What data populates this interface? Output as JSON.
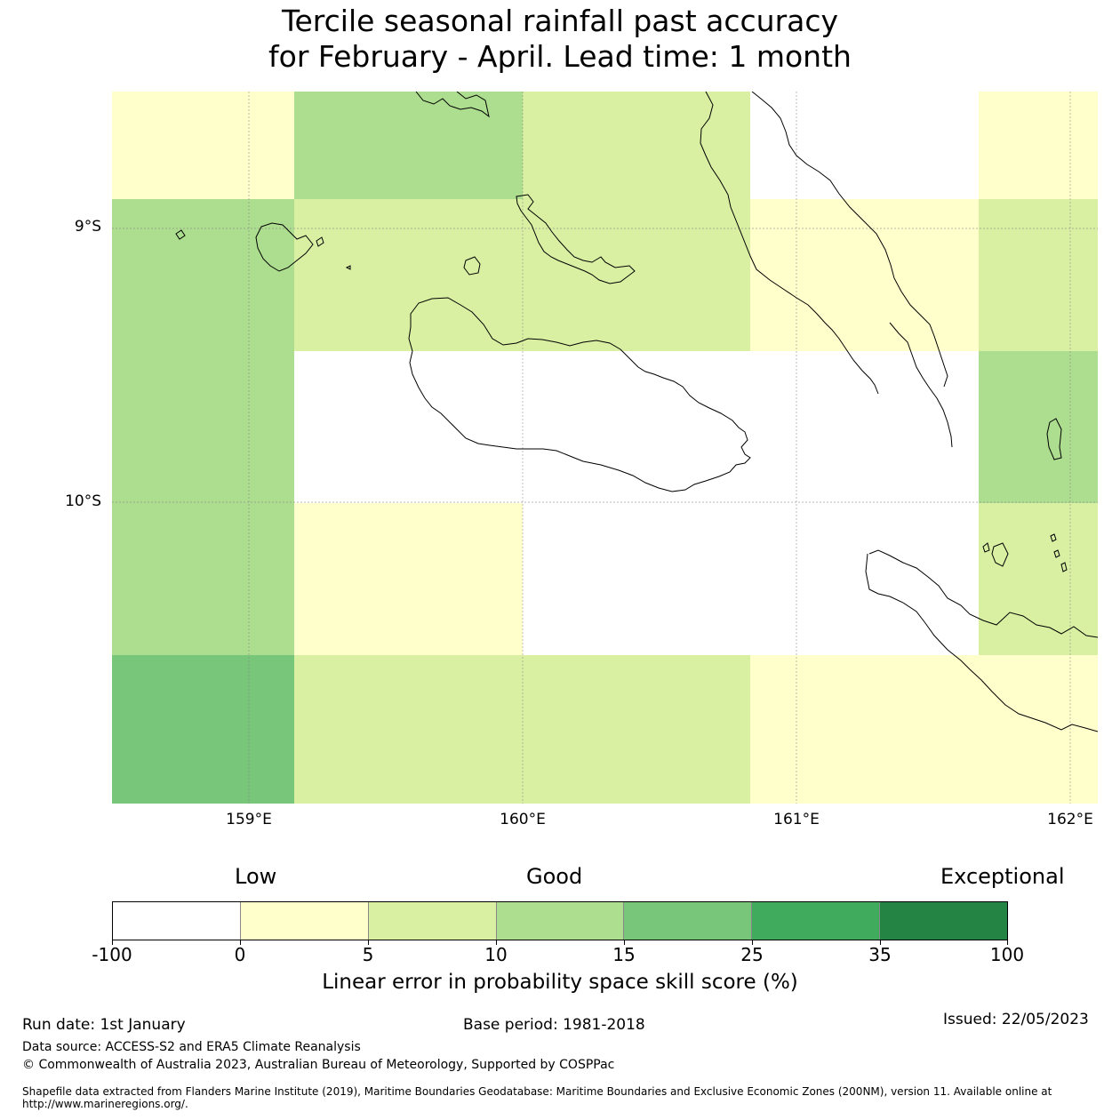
{
  "title": {
    "line1": "Tercile seasonal rainfall past accuracy",
    "line2": "for February - April. Lead time: 1 month"
  },
  "map": {
    "lat_labels": [
      "9°S",
      "10°S"
    ],
    "lon_labels": [
      "159°E",
      "160°E",
      "161°E",
      "162°E"
    ],
    "extent": {
      "lon_min": 158.5,
      "lon_max": 162.1,
      "lat_min": -11.1,
      "lat_max": -8.5
    },
    "cell_colors": {
      "white": "#ffffff",
      "cat0": "#ffffcc",
      "cat5": "#d9f0a3",
      "cat10": "#addd8e",
      "cat15": "#78c679",
      "cat25": "#41ab5d",
      "cat35": "#238443"
    },
    "grid_rows": [
      [
        "cat0",
        "cat10",
        "cat5",
        "white",
        "cat0"
      ],
      [
        "cat10",
        "cat5",
        "cat5",
        "cat0",
        "cat5"
      ],
      [
        "cat10",
        "white",
        "white",
        "white",
        "cat10"
      ],
      [
        "cat10",
        "cat0",
        "white",
        "white",
        "cat5"
      ],
      [
        "cat15",
        "cat5",
        "cat5",
        "cat0",
        "cat0"
      ]
    ]
  },
  "scale": {
    "low": "Low",
    "good": "Good",
    "exceptional": "Exceptional"
  },
  "colorbar": {
    "colors": [
      "#ffffff",
      "#ffffcc",
      "#d9f0a3",
      "#addd8e",
      "#78c679",
      "#41ab5d",
      "#238443"
    ],
    "ticks": [
      "-100",
      "0",
      "5",
      "10",
      "15",
      "25",
      "35",
      "100"
    ],
    "label": "Linear error in probability space skill score (%)"
  },
  "footer": {
    "run_date": "Run date: 1st January",
    "base_period": "Base period: 1981-2018",
    "issued": "Issued: 22/05/2023",
    "data_source": "Data source: ACCESS-S2 and ERA5 Climate Reanalysis",
    "copyright": "© Commonwealth of Australia 2023, Australian Bureau of Meteorology, Supported by COSPPac",
    "shapefile_line1": "Shapefile data extracted from Flanders Marine Institute (2019), Maritime Boundaries Geodatabase: Maritime Boundaries and Exclusive Economic Zones (200NM), version 11. Available online at",
    "shapefile_line2": "http://www.marineregions.org/."
  }
}
